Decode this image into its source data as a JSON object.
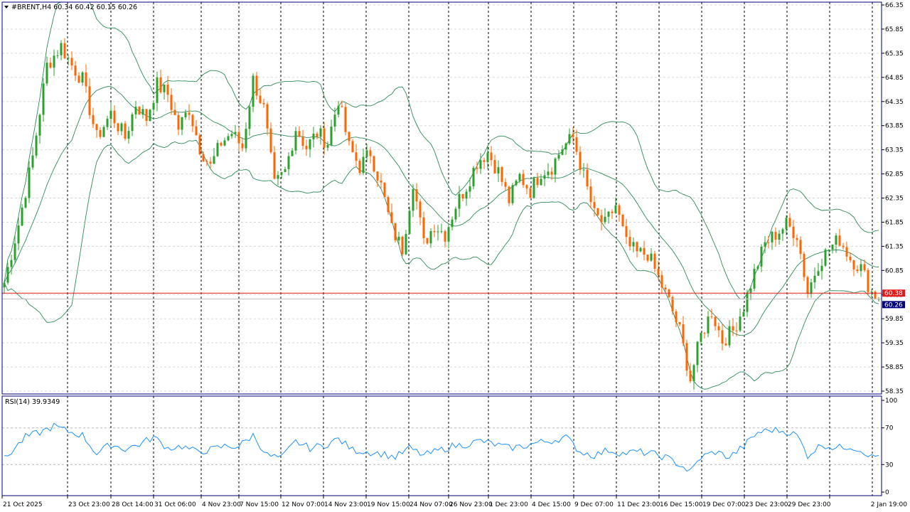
{
  "header": {
    "symbol_info": "#BRENT,H4 60.34 60.42 60.15 60.26"
  },
  "rsi_panel": {
    "label": "RSI(14) 39.9349"
  },
  "price_tags": {
    "bid_line": "60.38",
    "last": "60.26"
  },
  "colors": {
    "bull": "#2ca02c",
    "bear": "#ff6600",
    "band": "#2e8b57",
    "rsi": "#1e90ff",
    "bid_line": "#e81818",
    "frame": "#000080",
    "grid": "#d8d8d8"
  },
  "chart_data": [
    {
      "type": "candlestick",
      "symbol": "#BRENT",
      "timeframe": "H4",
      "ylim": [
        58.35,
        66.35
      ],
      "y_ticks": [
        "66.35",
        "65.85",
        "65.35",
        "64.85",
        "64.35",
        "63.85",
        "63.35",
        "62.85",
        "62.35",
        "61.85",
        "61.35",
        "60.85",
        "60.35",
        "59.85",
        "59.35",
        "58.85",
        "58.35"
      ],
      "x_ticks": [
        "21 Oct 2025",
        "23 Oct 23:00",
        "28 Oct 14:00",
        "31 Oct 06:00",
        "4 Nov 23:00",
        "7 Nov 15:00",
        "12 Nov 07:00",
        "14 Nov 23:00",
        "19 Nov 15:00",
        "24 Nov 07:00",
        "26 Nov 23:00",
        "1 Dec 23:00",
        "4 Dec 15:00",
        "9 Dec 07:00",
        "11 Dec 23:00",
        "16 Dec 15:00",
        "19 Dec 07:00",
        "23 Dec 23:00",
        "29 Dec 23:00",
        "2 Jan 19:00"
      ],
      "bid_price": 60.38,
      "last_price": 60.26,
      "grid": true,
      "close_path": [
        {
          "bar": 0,
          "price": 60.6
        },
        {
          "bar": 4,
          "price": 61.8
        },
        {
          "bar": 8,
          "price": 63.2
        },
        {
          "bar": 12,
          "price": 65.1
        },
        {
          "bar": 16,
          "price": 65.5
        },
        {
          "bar": 19,
          "price": 65.1
        },
        {
          "bar": 22,
          "price": 64.8
        },
        {
          "bar": 26,
          "price": 63.6
        },
        {
          "bar": 30,
          "price": 64.1
        },
        {
          "bar": 34,
          "price": 63.6
        },
        {
          "bar": 37,
          "price": 64.3
        },
        {
          "bar": 40,
          "price": 64.0
        },
        {
          "bar": 43,
          "price": 64.7
        },
        {
          "bar": 46,
          "price": 64.5
        },
        {
          "bar": 49,
          "price": 63.8
        },
        {
          "bar": 52,
          "price": 64.2
        },
        {
          "bar": 55,
          "price": 63.4
        },
        {
          "bar": 58,
          "price": 63.0
        },
        {
          "bar": 61,
          "price": 63.5
        },
        {
          "bar": 64,
          "price": 63.7
        },
        {
          "bar": 67,
          "price": 63.4
        },
        {
          "bar": 70,
          "price": 64.8
        },
        {
          "bar": 73,
          "price": 64.2
        },
        {
          "bar": 76,
          "price": 62.6
        },
        {
          "bar": 79,
          "price": 62.9
        },
        {
          "bar": 82,
          "price": 63.8
        },
        {
          "bar": 85,
          "price": 63.4
        },
        {
          "bar": 88,
          "price": 63.7
        },
        {
          "bar": 91,
          "price": 63.5
        },
        {
          "bar": 94,
          "price": 64.4
        },
        {
          "bar": 97,
          "price": 63.4
        },
        {
          "bar": 100,
          "price": 63.0
        },
        {
          "bar": 103,
          "price": 63.3
        },
        {
          "bar": 106,
          "price": 62.6
        },
        {
          "bar": 109,
          "price": 61.7
        },
        {
          "bar": 112,
          "price": 61.3
        },
        {
          "bar": 115,
          "price": 62.7
        },
        {
          "bar": 118,
          "price": 61.4
        },
        {
          "bar": 121,
          "price": 61.8
        },
        {
          "bar": 124,
          "price": 61.6
        },
        {
          "bar": 127,
          "price": 62.2
        },
        {
          "bar": 130,
          "price": 62.6
        },
        {
          "bar": 133,
          "price": 63.1
        },
        {
          "bar": 136,
          "price": 63.3
        },
        {
          "bar": 139,
          "price": 62.9
        },
        {
          "bar": 142,
          "price": 62.3
        },
        {
          "bar": 145,
          "price": 62.8
        },
        {
          "bar": 148,
          "price": 62.5
        },
        {
          "bar": 151,
          "price": 62.9
        },
        {
          "bar": 154,
          "price": 63.0
        },
        {
          "bar": 157,
          "price": 63.4
        },
        {
          "bar": 160,
          "price": 63.6
        },
        {
          "bar": 163,
          "price": 62.8
        },
        {
          "bar": 166,
          "price": 62.0
        },
        {
          "bar": 169,
          "price": 61.8
        },
        {
          "bar": 172,
          "price": 62.2
        },
        {
          "bar": 175,
          "price": 61.4
        },
        {
          "bar": 178,
          "price": 61.2
        },
        {
          "bar": 181,
          "price": 61.2
        },
        {
          "bar": 184,
          "price": 60.7
        },
        {
          "bar": 187,
          "price": 60.2
        },
        {
          "bar": 190,
          "price": 59.6
        },
        {
          "bar": 193,
          "price": 58.6
        },
        {
          "bar": 196,
          "price": 59.5
        },
        {
          "bar": 199,
          "price": 60.0
        },
        {
          "bar": 202,
          "price": 59.4
        },
        {
          "bar": 205,
          "price": 59.6
        },
        {
          "bar": 208,
          "price": 60.1
        },
        {
          "bar": 211,
          "price": 60.8
        },
        {
          "bar": 214,
          "price": 61.4
        },
        {
          "bar": 217,
          "price": 61.6
        },
        {
          "bar": 220,
          "price": 61.8
        },
        {
          "bar": 223,
          "price": 61.6
        },
        {
          "bar": 226,
          "price": 60.4
        },
        {
          "bar": 229,
          "price": 61.0
        },
        {
          "bar": 232,
          "price": 61.3
        },
        {
          "bar": 235,
          "price": 61.5
        },
        {
          "bar": 238,
          "price": 61.1
        },
        {
          "bar": 241,
          "price": 60.9
        },
        {
          "bar": 244,
          "price": 60.4
        },
        {
          "bar": 246,
          "price": 60.26
        }
      ]
    },
    {
      "type": "line",
      "name": "RSI(14)",
      "last_value": 39.9349,
      "ylim": [
        0,
        100
      ],
      "y_ticks": [
        "100",
        "70",
        "30",
        "0"
      ],
      "levels": [
        70,
        30
      ],
      "values_path": [
        {
          "bar": 0,
          "value": 36
        },
        {
          "bar": 6,
          "value": 60
        },
        {
          "bar": 10,
          "value": 65
        },
        {
          "bar": 14,
          "value": 72
        },
        {
          "bar": 18,
          "value": 66
        },
        {
          "bar": 22,
          "value": 62
        },
        {
          "bar": 26,
          "value": 42
        },
        {
          "bar": 30,
          "value": 52
        },
        {
          "bar": 34,
          "value": 47
        },
        {
          "bar": 38,
          "value": 52
        },
        {
          "bar": 42,
          "value": 60
        },
        {
          "bar": 46,
          "value": 48
        },
        {
          "bar": 50,
          "value": 50
        },
        {
          "bar": 54,
          "value": 44
        },
        {
          "bar": 58,
          "value": 46
        },
        {
          "bar": 62,
          "value": 50
        },
        {
          "bar": 66,
          "value": 50
        },
        {
          "bar": 70,
          "value": 62
        },
        {
          "bar": 74,
          "value": 40
        },
        {
          "bar": 78,
          "value": 37
        },
        {
          "bar": 82,
          "value": 55
        },
        {
          "bar": 86,
          "value": 48
        },
        {
          "bar": 90,
          "value": 51
        },
        {
          "bar": 94,
          "value": 58
        },
        {
          "bar": 98,
          "value": 46
        },
        {
          "bar": 102,
          "value": 44
        },
        {
          "bar": 106,
          "value": 42
        },
        {
          "bar": 110,
          "value": 38
        },
        {
          "bar": 114,
          "value": 48
        },
        {
          "bar": 118,
          "value": 40
        },
        {
          "bar": 122,
          "value": 45
        },
        {
          "bar": 126,
          "value": 50
        },
        {
          "bar": 130,
          "value": 52
        },
        {
          "bar": 134,
          "value": 56
        },
        {
          "bar": 138,
          "value": 52
        },
        {
          "bar": 142,
          "value": 48
        },
        {
          "bar": 146,
          "value": 50
        },
        {
          "bar": 150,
          "value": 54
        },
        {
          "bar": 154,
          "value": 56
        },
        {
          "bar": 158,
          "value": 60
        },
        {
          "bar": 162,
          "value": 44
        },
        {
          "bar": 166,
          "value": 40
        },
        {
          "bar": 170,
          "value": 46
        },
        {
          "bar": 174,
          "value": 42
        },
        {
          "bar": 178,
          "value": 44
        },
        {
          "bar": 182,
          "value": 42
        },
        {
          "bar": 186,
          "value": 38
        },
        {
          "bar": 190,
          "value": 30
        },
        {
          "bar": 193,
          "value": 22
        },
        {
          "bar": 196,
          "value": 38
        },
        {
          "bar": 200,
          "value": 44
        },
        {
          "bar": 204,
          "value": 38
        },
        {
          "bar": 208,
          "value": 50
        },
        {
          "bar": 212,
          "value": 65
        },
        {
          "bar": 216,
          "value": 68
        },
        {
          "bar": 220,
          "value": 66
        },
        {
          "bar": 223,
          "value": 62
        },
        {
          "bar": 226,
          "value": 40
        },
        {
          "bar": 230,
          "value": 52
        },
        {
          "bar": 234,
          "value": 48
        },
        {
          "bar": 238,
          "value": 50
        },
        {
          "bar": 242,
          "value": 44
        },
        {
          "bar": 244,
          "value": 38
        },
        {
          "bar": 246,
          "value": 39.93
        }
      ]
    }
  ]
}
